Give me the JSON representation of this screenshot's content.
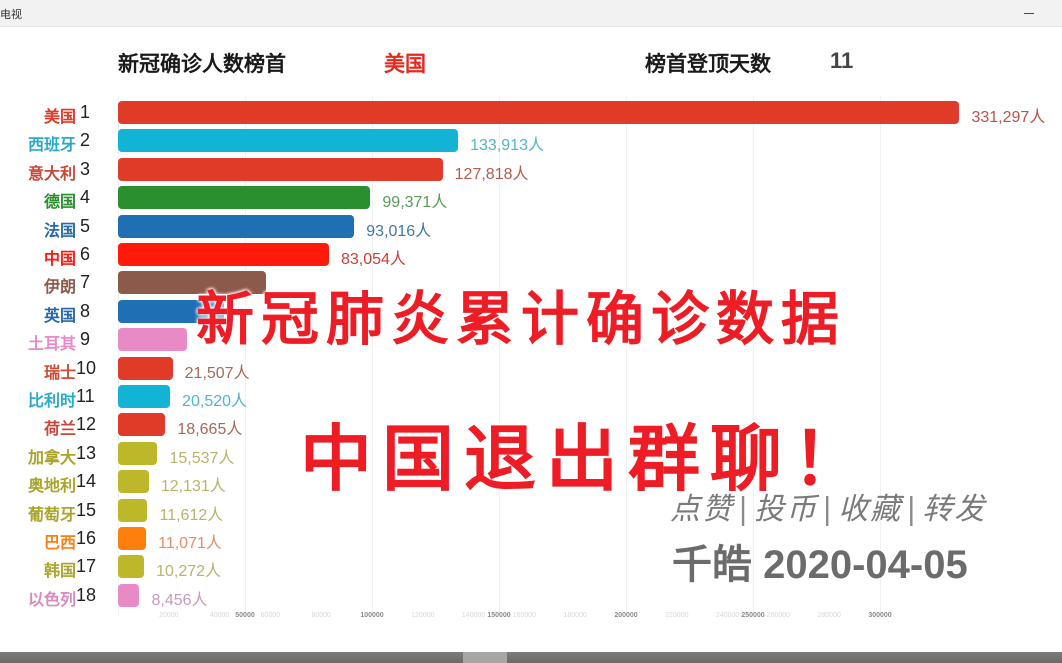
{
  "window": {
    "title": "电视",
    "minimize_label": "—"
  },
  "header": {
    "label": "新冠确诊人数榜首",
    "leader": "美国",
    "days_label": "榜首登顶天数",
    "days_value": "11"
  },
  "overlay": {
    "line1": "新冠肺炎累计确诊数据",
    "line2": "中国退出群聊！",
    "actions": [
      "点赞",
      "投币",
      "收藏",
      "转发"
    ],
    "actions_sep": "|",
    "date_line": "千皓 2020-04-05"
  },
  "chart_data": {
    "type": "bar",
    "orientation": "horizontal",
    "title": "新冠确诊人数榜首 美国 · 榜首登顶天数 11",
    "date": "2020-04-05",
    "unit": "人",
    "xlabel": "",
    "ylabel": "",
    "xlim": [
      0,
      331297
    ],
    "grid": true,
    "categories": [
      "美国",
      "西班牙",
      "意大利",
      "德国",
      "法国",
      "中国",
      "伊朗",
      "英国",
      "土耳其",
      "瑞士",
      "比利时",
      "荷兰",
      "加拿大",
      "奥地利",
      "葡萄牙",
      "巴西",
      "韩国",
      "以色列"
    ],
    "ranks": [
      1,
      2,
      3,
      4,
      5,
      6,
      7,
      8,
      9,
      10,
      11,
      12,
      13,
      14,
      15,
      16,
      17,
      18
    ],
    "values": [
      331297,
      133913,
      127818,
      99371,
      93016,
      83054,
      58226,
      41903,
      27069,
      21507,
      20520,
      18665,
      15537,
      12131,
      11612,
      11071,
      10272,
      8456
    ],
    "value_labels": [
      "331,297人",
      "133,913人",
      "127,818人",
      "99,371人",
      "93,016人",
      "83,054人",
      "",
      "",
      "",
      "21,507人",
      "20,520人",
      "18,665人",
      "15,537人",
      "12,131人",
      "11,612人",
      "11,071人",
      "10,272人",
      "8,456人"
    ],
    "note": "Values for 伊朗, 英国, 土耳其 are obscured by overlay text; estimated from bar lengths.",
    "colors": [
      "#e03a28",
      "#13b3d6",
      "#e03a28",
      "#2a8f2e",
      "#1f6fb5",
      "#ff1a0a",
      "#8c5a4a",
      "#1f6fb5",
      "#e88ac6",
      "#e03a28",
      "#13b3d6",
      "#e03a28",
      "#bdb82a",
      "#bdb82a",
      "#bdb82a",
      "#ff7f0e",
      "#bdb82a",
      "#e88ac6"
    ],
    "label_colors": [
      "#e03a28",
      "#2aa9cc",
      "#c8483a",
      "#2a8f2e",
      "#2568ad",
      "#ff1a0a",
      "#8c5a4a",
      "#2568ad",
      "#e88ac6",
      "#d24a34",
      "#2aa9cc",
      "#c8483a",
      "#aaa52a",
      "#aaa52a",
      "#aaa52a",
      "#ff7f0e",
      "#aaa52a",
      "#d98ac0"
    ],
    "value_colors": [
      "#c0504a",
      "#4fb6cf",
      "#b85a4e",
      "#5a9a5a",
      "#3f77ac",
      "#d23b30",
      "#8c5a4a",
      "#3f77ac",
      "#c7a8cf",
      "#a46a5a",
      "#4fb6cf",
      "#a46a5a",
      "#b8b46a",
      "#b8b46a",
      "#b8b46a",
      "#e0906a",
      "#b8b46a",
      "#c79ac0"
    ],
    "ticks_minor": [
      20000,
      40000,
      60000,
      80000,
      120000,
      140000,
      160000,
      180000,
      220000,
      240000,
      260000,
      280000
    ],
    "ticks_major": [
      50000,
      100000,
      150000,
      200000,
      250000,
      300000
    ]
  }
}
